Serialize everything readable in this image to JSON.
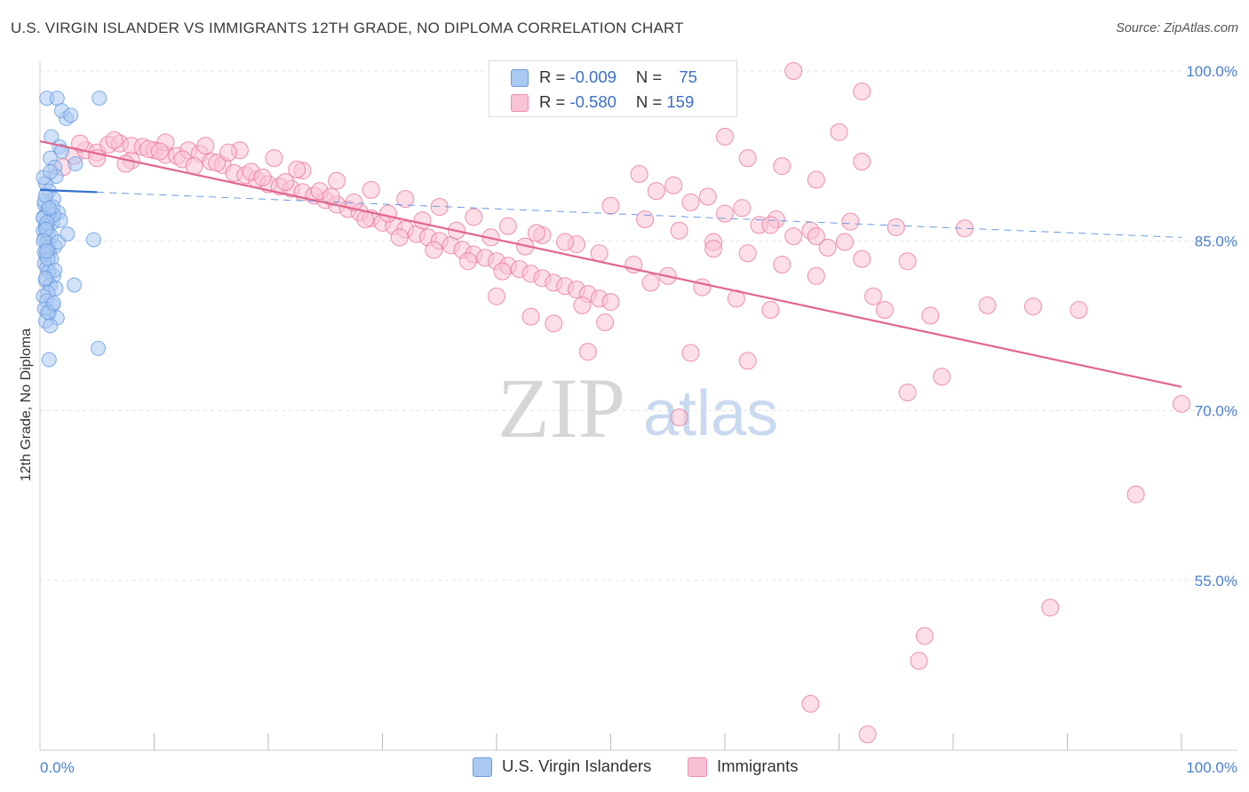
{
  "title": "U.S. VIRGIN ISLANDER VS IMMIGRANTS 12TH GRADE, NO DIPLOMA CORRELATION CHART",
  "source": "Source: ZipAtlas.com",
  "watermark": {
    "zip": "ZIP",
    "atlas": "atlas"
  },
  "legend": {
    "rows": [
      {
        "r_label": "R = ",
        "r_value": "-0.009",
        "n_label": "N = ",
        "n_value": "75",
        "color": "#a9c8f2",
        "border": "#6a9be0"
      },
      {
        "r_label": "R = ",
        "r_value": "-0.580",
        "n_label": "N = ",
        "n_value": "159",
        "color": "#f9c2d3",
        "border": "#ec8db0"
      }
    ]
  },
  "bottom_legend": [
    {
      "label": "U.S. Virgin Islanders",
      "color": "#a9c8f2",
      "border": "#6a9be0"
    },
    {
      "label": "Immigrants",
      "color": "#f9c2d3",
      "border": "#ec8db0"
    }
  ],
  "chart_data": {
    "type": "scatter",
    "title": "U.S. VIRGIN ISLANDER VS IMMIGRANTS 12TH GRADE, NO DIPLOMA CORRELATION CHART",
    "xlabel": "",
    "ylabel": "12th Grade, No Diploma",
    "xlim": [
      0,
      100
    ],
    "ylim": [
      40,
      100
    ],
    "y_ticks": [
      100,
      85,
      70,
      55
    ],
    "y_tick_labels": [
      "100.0%",
      "85.0%",
      "70.0%",
      "55.0%"
    ],
    "x_tick_labels": [
      "0.0%",
      "100.0%"
    ],
    "grid": "horizontal dashed",
    "legend_position": "top-center",
    "series": [
      {
        "name": "U.S. Virgin Islanders",
        "color": "#6a9be0",
        "fill": "#a9c8f2",
        "trend": {
          "x": [
            0,
            5
          ],
          "y": [
            89.5,
            89.3
          ],
          "style": "solid"
        },
        "trend_extended": {
          "x": [
            5,
            100
          ],
          "y": [
            89.3,
            85.3
          ],
          "style": "dashed"
        },
        "points": [
          [
            0.6,
            97.6
          ],
          [
            1.5,
            97.6
          ],
          [
            5.2,
            97.6
          ],
          [
            2.3,
            95.8
          ],
          [
            1.0,
            94.2
          ],
          [
            1.7,
            93.3
          ],
          [
            1.9,
            92.9
          ],
          [
            0.9,
            92.3
          ],
          [
            1.3,
            91.5
          ],
          [
            3.1,
            91.8
          ],
          [
            1.4,
            90.7
          ],
          [
            0.5,
            90.1
          ],
          [
            0.8,
            89.4
          ],
          [
            1.2,
            88.7
          ],
          [
            0.4,
            88.2
          ],
          [
            0.7,
            87.8
          ],
          [
            1.6,
            87.5
          ],
          [
            0.3,
            87.1
          ],
          [
            0.9,
            86.9
          ],
          [
            1.1,
            86.6
          ],
          [
            0.5,
            86.3
          ],
          [
            0.3,
            85.9
          ],
          [
            0.7,
            85.6
          ],
          [
            0.4,
            85.2
          ],
          [
            0.6,
            84.8
          ],
          [
            1.3,
            84.5
          ],
          [
            0.8,
            84.1
          ],
          [
            0.5,
            83.7
          ],
          [
            1.0,
            83.4
          ],
          [
            0.4,
            83.0
          ],
          [
            0.6,
            82.6
          ],
          [
            0.8,
            82.3
          ],
          [
            1.2,
            81.9
          ],
          [
            0.5,
            81.5
          ],
          [
            0.9,
            81.1
          ],
          [
            1.4,
            80.8
          ],
          [
            0.7,
            80.4
          ],
          [
            0.3,
            80.1
          ],
          [
            0.6,
            79.7
          ],
          [
            1.1,
            79.3
          ],
          [
            0.4,
            79.0
          ],
          [
            0.8,
            78.6
          ],
          [
            1.5,
            78.2
          ],
          [
            0.5,
            77.9
          ],
          [
            0.9,
            77.5
          ],
          [
            0.3,
            87.0
          ],
          [
            0.4,
            88.5
          ],
          [
            0.6,
            86.1
          ],
          [
            1.0,
            85.4
          ],
          [
            0.7,
            84.4
          ],
          [
            1.8,
            86.8
          ],
          [
            0.5,
            89.0
          ],
          [
            0.3,
            90.6
          ],
          [
            0.9,
            91.1
          ],
          [
            1.2,
            87.3
          ],
          [
            0.6,
            86.6
          ],
          [
            0.4,
            84.0
          ],
          [
            1.1,
            88.0
          ],
          [
            0.8,
            87.9
          ],
          [
            0.5,
            86.0
          ],
          [
            0.3,
            85.0
          ],
          [
            0.7,
            83.4
          ],
          [
            1.6,
            84.9
          ],
          [
            2.4,
            85.6
          ],
          [
            4.7,
            85.1
          ],
          [
            0.6,
            84.1
          ],
          [
            1.3,
            82.4
          ],
          [
            0.5,
            81.7
          ],
          [
            3.0,
            81.1
          ],
          [
            0.7,
            78.7
          ],
          [
            1.2,
            79.5
          ],
          [
            5.1,
            75.5
          ],
          [
            0.8,
            74.5
          ],
          [
            1.9,
            96.5
          ],
          [
            2.7,
            96.1
          ]
        ]
      },
      {
        "name": "Immigrants",
        "color": "#e8769e",
        "fill": "#f9c2d3",
        "trend": {
          "x": [
            0,
            100
          ],
          "y": [
            93.8,
            72.1
          ],
          "style": "solid"
        },
        "points": [
          [
            2.0,
            91.5
          ],
          [
            3.0,
            92.5
          ],
          [
            4.0,
            93.0
          ],
          [
            5.0,
            92.8
          ],
          [
            6.0,
            93.5
          ],
          [
            7.0,
            93.6
          ],
          [
            8.0,
            93.4
          ],
          [
            9.0,
            93.3
          ],
          [
            10.0,
            93.0
          ],
          [
            11.0,
            92.6
          ],
          [
            12.0,
            92.5
          ],
          [
            13.0,
            93.0
          ],
          [
            14.0,
            92.7
          ],
          [
            15.0,
            92.0
          ],
          [
            16.0,
            91.7
          ],
          [
            17.0,
            91.0
          ],
          [
            18.0,
            90.8
          ],
          [
            19.0,
            90.4
          ],
          [
            20.0,
            90.0
          ],
          [
            21.0,
            89.8
          ],
          [
            22.0,
            89.6
          ],
          [
            23.0,
            89.3
          ],
          [
            24.0,
            89.0
          ],
          [
            25.0,
            88.6
          ],
          [
            26.0,
            88.2
          ],
          [
            27.0,
            87.8
          ],
          [
            28.0,
            87.5
          ],
          [
            29.0,
            87.0
          ],
          [
            30.0,
            86.6
          ],
          [
            31.0,
            86.3
          ],
          [
            32.0,
            86.0
          ],
          [
            33.0,
            85.6
          ],
          [
            34.0,
            85.3
          ],
          [
            35.0,
            85.0
          ],
          [
            36.0,
            84.6
          ],
          [
            37.0,
            84.2
          ],
          [
            38.0,
            83.8
          ],
          [
            39.0,
            83.5
          ],
          [
            40.0,
            83.2
          ],
          [
            41.0,
            82.8
          ],
          [
            42.0,
            82.5
          ],
          [
            43.0,
            82.1
          ],
          [
            44.0,
            81.7
          ],
          [
            45.0,
            81.3
          ],
          [
            46.0,
            81.0
          ],
          [
            47.0,
            80.7
          ],
          [
            48.0,
            80.3
          ],
          [
            49.0,
            79.9
          ],
          [
            50.0,
            79.6
          ],
          [
            3.5,
            93.6
          ],
          [
            6.5,
            93.9
          ],
          [
            9.5,
            93.1
          ],
          [
            12.5,
            92.2
          ],
          [
            15.5,
            91.9
          ],
          [
            18.5,
            91.1
          ],
          [
            21.5,
            90.2
          ],
          [
            24.5,
            89.4
          ],
          [
            27.5,
            88.4
          ],
          [
            30.5,
            87.4
          ],
          [
            33.5,
            86.8
          ],
          [
            36.5,
            85.9
          ],
          [
            39.5,
            85.3
          ],
          [
            42.5,
            84.5
          ],
          [
            8.0,
            92.1
          ],
          [
            11.0,
            93.7
          ],
          [
            14.5,
            93.4
          ],
          [
            17.5,
            93.0
          ],
          [
            20.5,
            92.3
          ],
          [
            23.0,
            91.2
          ],
          [
            26.0,
            90.3
          ],
          [
            29.0,
            89.5
          ],
          [
            32.0,
            88.7
          ],
          [
            35.0,
            88.0
          ],
          [
            38.0,
            87.1
          ],
          [
            41.0,
            86.3
          ],
          [
            44.0,
            85.5
          ],
          [
            47.0,
            84.7
          ],
          [
            5.0,
            92.3
          ],
          [
            7.5,
            91.8
          ],
          [
            10.5,
            92.9
          ],
          [
            13.5,
            91.6
          ],
          [
            16.5,
            92.8
          ],
          [
            19.5,
            90.6
          ],
          [
            22.5,
            91.3
          ],
          [
            25.5,
            88.9
          ],
          [
            28.5,
            86.9
          ],
          [
            31.5,
            85.3
          ],
          [
            34.5,
            84.2
          ],
          [
            37.5,
            83.2
          ],
          [
            40.5,
            82.3
          ],
          [
            43.5,
            85.7
          ],
          [
            46.0,
            84.9
          ],
          [
            49.0,
            83.9
          ],
          [
            52.0,
            82.9
          ],
          [
            55.0,
            81.9
          ],
          [
            58.0,
            80.9
          ],
          [
            61.0,
            79.9
          ],
          [
            64.0,
            78.9
          ],
          [
            50.0,
            88.1
          ],
          [
            53.0,
            86.9
          ],
          [
            56.0,
            85.9
          ],
          [
            59.0,
            84.9
          ],
          [
            62.0,
            83.9
          ],
          [
            65.0,
            82.9
          ],
          [
            68.0,
            81.9
          ],
          [
            52.5,
            90.9
          ],
          [
            55.5,
            89.9
          ],
          [
            58.5,
            88.9
          ],
          [
            61.5,
            87.9
          ],
          [
            64.5,
            86.9
          ],
          [
            67.5,
            85.9
          ],
          [
            70.5,
            84.9
          ],
          [
            54.0,
            89.4
          ],
          [
            57.0,
            88.4
          ],
          [
            60.0,
            87.4
          ],
          [
            63.0,
            86.4
          ],
          [
            66.0,
            85.4
          ],
          [
            69.0,
            84.4
          ],
          [
            72.0,
            83.4
          ],
          [
            60.0,
            94.2
          ],
          [
            62.0,
            92.3
          ],
          [
            65.0,
            91.6
          ],
          [
            68.0,
            90.4
          ],
          [
            70.0,
            94.6
          ],
          [
            72.0,
            92.0
          ],
          [
            76.0,
            83.2
          ],
          [
            73.0,
            80.1
          ],
          [
            74.0,
            78.9
          ],
          [
            78.0,
            78.4
          ],
          [
            83.0,
            79.3
          ],
          [
            87.0,
            79.2
          ],
          [
            91.0,
            78.9
          ],
          [
            100.0,
            70.6
          ],
          [
            76.0,
            71.6
          ],
          [
            79.0,
            73.0
          ],
          [
            66.0,
            100.0
          ],
          [
            72.0,
            98.2
          ],
          [
            57.0,
            75.1
          ],
          [
            62.0,
            74.4
          ],
          [
            56.0,
            69.4
          ],
          [
            96.0,
            62.6
          ],
          [
            88.5,
            52.6
          ],
          [
            77.5,
            50.1
          ],
          [
            77.0,
            47.9
          ],
          [
            67.5,
            44.1
          ],
          [
            72.5,
            41.4
          ],
          [
            81.0,
            86.1
          ],
          [
            75.0,
            86.2
          ],
          [
            71.0,
            86.7
          ],
          [
            68.0,
            85.4
          ],
          [
            64.0,
            86.4
          ],
          [
            59.0,
            84.3
          ],
          [
            53.5,
            81.3
          ],
          [
            47.5,
            79.3
          ],
          [
            45.0,
            77.7
          ],
          [
            48.0,
            75.2
          ],
          [
            49.5,
            77.8
          ],
          [
            43.0,
            78.3
          ],
          [
            40.0,
            80.1
          ]
        ]
      }
    ]
  }
}
